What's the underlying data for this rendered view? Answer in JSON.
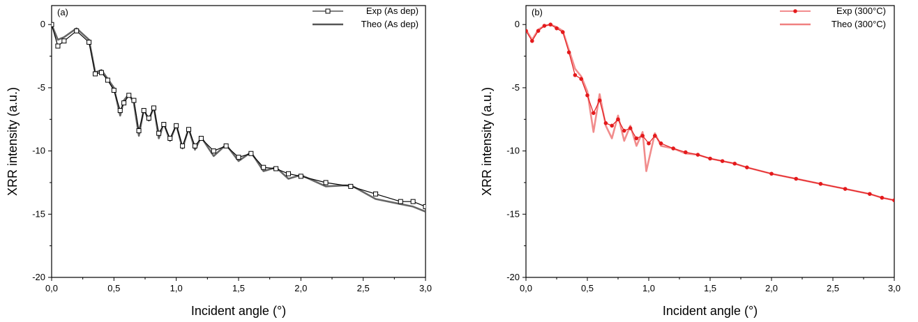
{
  "chart_data": [
    {
      "type": "line",
      "panel_label": "(a)",
      "xlabel": "Incident angle (°)",
      "ylabel": "XRR intensity (a.u.)",
      "xlim": [
        0,
        3.0
      ],
      "ylim": [
        -20,
        1.5
      ],
      "x_ticks": [
        "0,0",
        "0,5",
        "1,0",
        "1,5",
        "2,0",
        "2,5",
        "3,0"
      ],
      "y_ticks": [
        "0",
        "-5",
        "-10",
        "-15",
        "-20"
      ],
      "grid": false,
      "legend_position": "top-right",
      "series": [
        {
          "name": "Exp (As dep)",
          "style": "line-square-markers",
          "color": "#000000",
          "x": [
            0.0,
            0.05,
            0.1,
            0.2,
            0.3,
            0.35,
            0.4,
            0.45,
            0.5,
            0.55,
            0.58,
            0.62,
            0.66,
            0.7,
            0.74,
            0.78,
            0.82,
            0.86,
            0.9,
            0.95,
            1.0,
            1.05,
            1.1,
            1.15,
            1.2,
            1.3,
            1.4,
            1.5,
            1.6,
            1.7,
            1.8,
            1.9,
            2.0,
            2.2,
            2.4,
            2.6,
            2.8,
            2.9,
            3.0
          ],
          "y": [
            0.0,
            -1.7,
            -1.3,
            -0.5,
            -1.4,
            -3.9,
            -3.8,
            -4.4,
            -5.2,
            -6.8,
            -6.2,
            -5.6,
            -6.0,
            -8.4,
            -6.8,
            -7.4,
            -6.6,
            -8.6,
            -7.9,
            -9.0,
            -8.0,
            -9.6,
            -8.3,
            -9.6,
            -9.0,
            -10.0,
            -9.6,
            -10.5,
            -10.2,
            -11.3,
            -11.4,
            -11.8,
            -12.0,
            -12.5,
            -12.8,
            -13.4,
            -14.0,
            -14.0,
            -14.4
          ]
        },
        {
          "name": "Theo (As dep)",
          "style": "line",
          "color": "#555555",
          "x": [
            0.0,
            0.05,
            0.1,
            0.2,
            0.3,
            0.35,
            0.4,
            0.45,
            0.5,
            0.55,
            0.58,
            0.62,
            0.66,
            0.7,
            0.74,
            0.78,
            0.82,
            0.86,
            0.9,
            0.95,
            1.0,
            1.05,
            1.1,
            1.15,
            1.2,
            1.3,
            1.4,
            1.5,
            1.6,
            1.7,
            1.8,
            1.9,
            2.0,
            2.2,
            2.4,
            2.6,
            2.8,
            2.9,
            3.0
          ],
          "y": [
            0.0,
            -1.2,
            -1.0,
            -0.3,
            -1.2,
            -3.8,
            -3.6,
            -4.3,
            -5.0,
            -7.2,
            -6.0,
            -5.5,
            -6.2,
            -8.8,
            -6.7,
            -7.6,
            -6.5,
            -9.0,
            -7.8,
            -9.2,
            -7.9,
            -9.8,
            -8.2,
            -9.9,
            -8.9,
            -10.4,
            -9.5,
            -10.8,
            -10.1,
            -11.6,
            -11.3,
            -12.2,
            -11.9,
            -12.8,
            -12.7,
            -13.8,
            -14.2,
            -14.4,
            -14.8
          ]
        }
      ]
    },
    {
      "type": "line",
      "panel_label": "(b)",
      "xlabel": "Incident angle (°)",
      "ylabel": "XRR intensity (a.u.)",
      "xlim": [
        0,
        3.0
      ],
      "ylim": [
        -20,
        1.5
      ],
      "x_ticks": [
        "0,0",
        "0,5",
        "1,0",
        "1,5",
        "2,0",
        "2,5",
        "3,0"
      ],
      "y_ticks": [
        "0",
        "-5",
        "-10",
        "-15",
        "-20"
      ],
      "grid": false,
      "legend_position": "top-right",
      "series": [
        {
          "name": "Exp (300°C)",
          "style": "line-circle-markers",
          "color": "#e41a1c",
          "x": [
            0.0,
            0.05,
            0.1,
            0.15,
            0.2,
            0.25,
            0.3,
            0.35,
            0.4,
            0.45,
            0.5,
            0.55,
            0.6,
            0.65,
            0.7,
            0.75,
            0.8,
            0.85,
            0.9,
            0.95,
            1.0,
            1.05,
            1.1,
            1.2,
            1.3,
            1.4,
            1.5,
            1.6,
            1.7,
            1.8,
            2.0,
            2.2,
            2.4,
            2.6,
            2.8,
            2.9,
            3.0
          ],
          "y": [
            -0.5,
            -1.3,
            -0.5,
            -0.1,
            0.0,
            -0.3,
            -0.6,
            -2.2,
            -4.0,
            -4.3,
            -5.6,
            -7.0,
            -6.0,
            -7.8,
            -8.0,
            -7.5,
            -8.4,
            -8.2,
            -9.0,
            -8.8,
            -9.4,
            -8.8,
            -9.4,
            -9.8,
            -10.1,
            -10.3,
            -10.6,
            -10.8,
            -11.0,
            -11.3,
            -11.8,
            -12.2,
            -12.6,
            -13.0,
            -13.4,
            -13.7,
            -13.9
          ]
        },
        {
          "name": "Theo (300°C)",
          "style": "line",
          "color": "#f08080",
          "x": [
            0.0,
            0.05,
            0.1,
            0.15,
            0.2,
            0.25,
            0.3,
            0.35,
            0.4,
            0.45,
            0.5,
            0.55,
            0.6,
            0.65,
            0.7,
            0.75,
            0.8,
            0.85,
            0.9,
            0.95,
            0.98,
            1.05,
            1.1,
            1.2,
            1.3,
            1.4,
            1.5,
            1.6,
            1.7,
            1.8,
            2.0,
            2.2,
            2.4,
            2.6,
            2.8,
            2.9,
            3.0
          ],
          "y": [
            -0.4,
            -1.2,
            -0.4,
            -0.1,
            0.0,
            -0.2,
            -0.5,
            -2.0,
            -3.5,
            -4.1,
            -5.3,
            -8.5,
            -5.5,
            -8.0,
            -9.0,
            -7.2,
            -9.2,
            -8.0,
            -9.6,
            -8.5,
            -11.6,
            -8.6,
            -9.6,
            -9.8,
            -10.2,
            -10.3,
            -10.6,
            -10.8,
            -11.0,
            -11.3,
            -11.8,
            -12.2,
            -12.6,
            -13.0,
            -13.4,
            -13.7,
            -13.9
          ]
        }
      ]
    }
  ]
}
